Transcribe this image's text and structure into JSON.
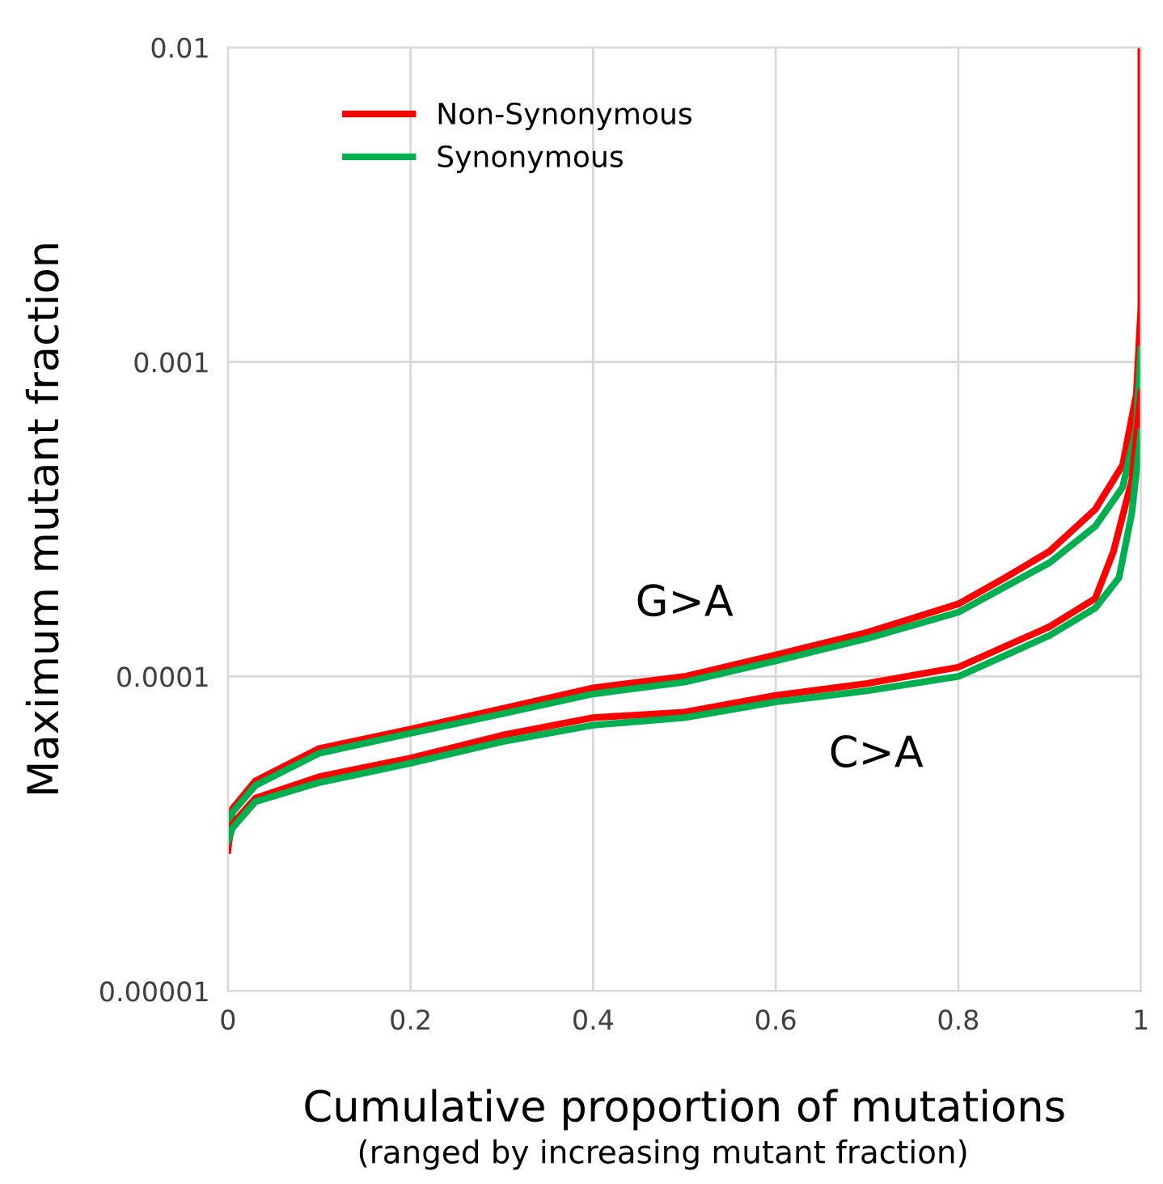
{
  "chart_data": {
    "type": "line",
    "xlabel": "Cumulative proportion of mutations",
    "ylabel": "Maximum mutant fraction",
    "annotations": [
      "G>A",
      "C>A",
      "(ranged by increasing mutant fraction)"
    ],
    "xlim": [
      0,
      1
    ],
    "ylim": [
      1e-05,
      0.01
    ],
    "log": "y",
    "xticks": [
      0,
      0.2,
      0.4,
      0.6,
      0.8,
      1
    ],
    "yticks": [
      {
        "value": 1e-05,
        "label": "0.00001"
      },
      {
        "value": 0.0001,
        "label": "0.0001"
      },
      {
        "value": 0.001,
        "label": "0.001"
      },
      {
        "value": 0.01,
        "label": "0.01"
      }
    ],
    "grid": true,
    "legend": "top left",
    "line_style": "solid",
    "marker": "none",
    "series": [
      {
        "name": "Non-Synonymous",
        "color": "#ff0000",
        "x": [
          0,
          0.005,
          0.03,
          0.1,
          0.2,
          0.3,
          0.4,
          0.5,
          0.6,
          0.7,
          0.8,
          0.85,
          0.9,
          0.95,
          0.98,
          0.995,
          1.0,
          1.0
        ],
        "values": [
          2.8e-05,
          3.8e-05,
          4.65e-05,
          5.9e-05,
          6.8e-05,
          7.9e-05,
          9.2e-05,
          0.0001,
          0.000117,
          0.000138,
          0.00017,
          0.000205,
          0.00025,
          0.00034,
          0.00047,
          0.00079,
          0.0015,
          0.01
        ]
      },
      {
        "name": "Synonymous",
        "color": "#00b050",
        "x": [
          0,
          0.005,
          0.03,
          0.1,
          0.2,
          0.3,
          0.4,
          0.5,
          0.6,
          0.7,
          0.8,
          0.85,
          0.9,
          0.95,
          0.98,
          0.995,
          1.0
        ],
        "values": [
          3e-05,
          3.7e-05,
          4.5e-05,
          5.7e-05,
          6.6e-05,
          7.6e-05,
          8.8e-05,
          9.6e-05,
          0.000112,
          0.000132,
          0.00016,
          0.000192,
          0.00023,
          0.0003,
          0.0004,
          0.00062,
          0.0011
        ]
      },
      {
        "color": "#ff0000",
        "x": [
          0,
          0.005,
          0.03,
          0.1,
          0.2,
          0.3,
          0.4,
          0.5,
          0.6,
          0.7,
          0.8,
          0.9,
          0.95,
          0.97,
          0.99,
          1.0
        ],
        "values": [
          2.9e-05,
          3.4e-05,
          4.1e-05,
          4.8e-05,
          5.5e-05,
          6.5e-05,
          7.4e-05,
          7.7e-05,
          8.7e-05,
          9.5e-05,
          0.000107,
          0.000144,
          0.000177,
          0.00025,
          0.00042,
          0.0008
        ]
      },
      {
        "color": "#00b050",
        "x": [
          0,
          0.005,
          0.03,
          0.1,
          0.2,
          0.3,
          0.4,
          0.5,
          0.6,
          0.7,
          0.8,
          0.9,
          0.95,
          0.976,
          0.99,
          1.0
        ],
        "values": [
          3e-05,
          3.3e-05,
          4e-05,
          4.6e-05,
          5.3e-05,
          6.2e-05,
          7e-05,
          7.4e-05,
          8.3e-05,
          9e-05,
          0.0001,
          0.000135,
          0.000165,
          0.000206,
          0.00033,
          0.0006
        ]
      }
    ]
  }
}
